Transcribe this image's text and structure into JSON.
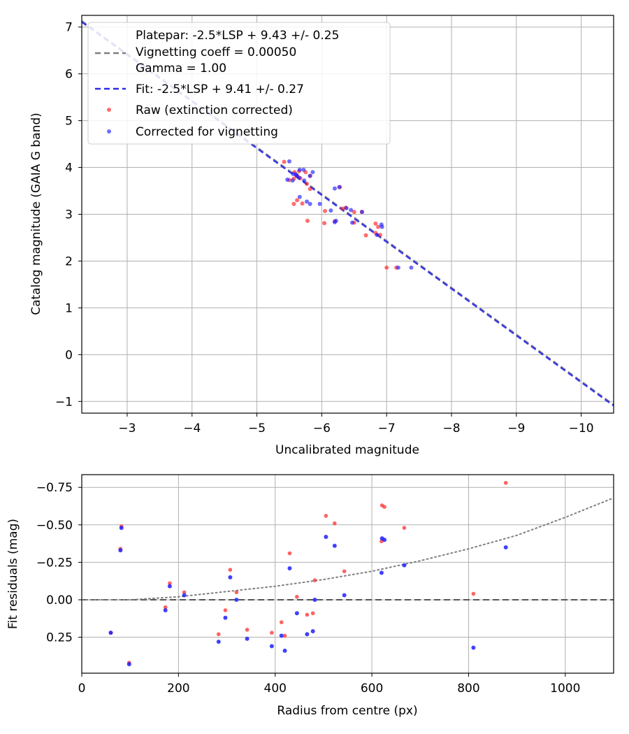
{
  "chart_data": [
    {
      "type": "scatter",
      "name": "calibration",
      "xlabel": "Uncalibrated magnitude",
      "ylabel": "Catalog magnitude (GAIA G band)",
      "xlim": [
        -2.3,
        -10.5
      ],
      "ylim": [
        7.25,
        -1.25
      ],
      "xticks": [
        -3,
        -4,
        -5,
        -6,
        -7,
        -8,
        -9,
        -10
      ],
      "xtick_labels": [
        "−3",
        "−4",
        "−5",
        "−6",
        "−7",
        "−8",
        "−9",
        "−10"
      ],
      "yticks": [
        -1,
        0,
        1,
        2,
        3,
        4,
        5,
        6,
        7
      ],
      "ytick_labels": [
        "−1",
        "0",
        "1",
        "2",
        "3",
        "4",
        "5",
        "6",
        "7"
      ],
      "grid": true,
      "legend": {
        "position": "top-left",
        "entries": [
          {
            "text": "Platepar: -2.5*LSP + 9.43 +/- 0.25",
            "marker": "none"
          },
          {
            "text": "Vignetting coeff = 0.00050",
            "marker": "dashed-gray"
          },
          {
            "text": "Gamma = 1.00",
            "marker": "none"
          },
          {
            "text": "Fit: -2.5*LSP + 9.41 +/- 0.27",
            "marker": "dashed-blue"
          },
          {
            "text": "Raw (extinction corrected)",
            "marker": "red-dot"
          },
          {
            "text": "Corrected for vignetting",
            "marker": "blue-dot"
          }
        ]
      },
      "lines": [
        {
          "name": "platepar",
          "slope": -2.5,
          "intercept": 9.43,
          "color": "#7f7f7f",
          "style": "dashed"
        },
        {
          "name": "fit",
          "slope": -2.5,
          "intercept": 9.41,
          "color": "#2a2ae6",
          "style": "dashed"
        }
      ],
      "series": [
        {
          "name": "Raw (extinction corrected)",
          "color": "#ff2020",
          "points": [
            [
              -7.0,
              1.86
            ],
            [
              -7.15,
              1.86
            ],
            [
              -6.9,
              2.56
            ],
            [
              -6.83,
              2.6
            ],
            [
              -6.68,
              2.55
            ],
            [
              -6.87,
              2.73
            ],
            [
              -6.83,
              2.8
            ],
            [
              -6.5,
              2.82
            ],
            [
              -6.5,
              3.05
            ],
            [
              -6.04,
              2.81
            ],
            [
              -6.05,
              3.07
            ],
            [
              -6.2,
              2.85
            ],
            [
              -6.32,
              3.12
            ],
            [
              -6.37,
              3.14
            ],
            [
              -6.28,
              3.58
            ],
            [
              -6.62,
              3.05
            ],
            [
              -5.78,
              2.86
            ],
            [
              -5.7,
              3.23
            ],
            [
              -5.57,
              3.22
            ],
            [
              -5.62,
              3.3
            ],
            [
              -5.77,
              3.65
            ],
            [
              -5.82,
              3.54
            ],
            [
              -5.67,
              3.77
            ],
            [
              -5.5,
              3.73
            ],
            [
              -5.57,
              3.76
            ],
            [
              -5.62,
              3.82
            ],
            [
              -5.75,
              3.9
            ],
            [
              -5.58,
              3.9
            ],
            [
              -5.42,
              4.12
            ],
            [
              -5.6,
              3.85
            ],
            [
              -5.82,
              3.82
            ],
            [
              -5.65,
              3.92
            ]
          ]
        },
        {
          "name": "Corrected for vignetting",
          "color": "#2020ff",
          "points": [
            [
              -7.38,
              1.86
            ],
            [
              -7.18,
              1.86
            ],
            [
              -6.93,
              2.73
            ],
            [
              -6.92,
              2.78
            ],
            [
              -6.85,
              2.56
            ],
            [
              -6.47,
              2.82
            ],
            [
              -6.45,
              3.09
            ],
            [
              -6.2,
              2.83
            ],
            [
              -6.22,
              2.86
            ],
            [
              -6.62,
              3.05
            ],
            [
              -6.14,
              3.08
            ],
            [
              -6.38,
              3.13
            ],
            [
              -5.97,
              3.22
            ],
            [
              -5.82,
              3.22
            ],
            [
              -5.77,
              3.27
            ],
            [
              -6.2,
              3.55
            ],
            [
              -6.27,
              3.58
            ],
            [
              -5.66,
              3.37
            ],
            [
              -5.73,
              3.72
            ],
            [
              -5.82,
              3.82
            ],
            [
              -5.86,
              3.9
            ],
            [
              -5.62,
              3.82
            ],
            [
              -5.55,
              3.72
            ],
            [
              -5.5,
              4.13
            ],
            [
              -5.72,
              3.95
            ],
            [
              -5.6,
              3.85
            ],
            [
              -5.65,
              3.78
            ],
            [
              -5.56,
              3.86
            ],
            [
              -5.66,
              3.95
            ],
            [
              -5.47,
              3.74
            ]
          ]
        }
      ]
    },
    {
      "type": "scatter",
      "name": "residuals",
      "xlabel": "Radius from centre (px)",
      "ylabel": "Fit residuals (mag)",
      "xlim": [
        0,
        1100
      ],
      "ylim": [
        -0.835,
        0.49
      ],
      "xticks": [
        0,
        200,
        400,
        600,
        800,
        1000
      ],
      "xtick_labels": [
        "0",
        "200",
        "400",
        "600",
        "800",
        "1000"
      ],
      "yticks": [
        0.25,
        0.0,
        -0.25,
        -0.5,
        -0.75
      ],
      "ytick_labels": [
        "0.25",
        "0.00",
        "−0.25",
        "−0.50",
        "−0.75"
      ],
      "grid": true,
      "zero_line": {
        "y": 0.0,
        "color": "#555555",
        "style": "dashed"
      },
      "vignetting_curve": {
        "color": "#7f7f7f",
        "style": "dotted",
        "x": [
          0,
          100,
          200,
          300,
          400,
          500,
          600,
          700,
          800,
          900,
          1000,
          1100
        ],
        "y": [
          0.0,
          0.0,
          -0.02,
          -0.055,
          -0.09,
          -0.135,
          -0.19,
          -0.26,
          -0.34,
          -0.43,
          -0.55,
          -0.68
        ]
      },
      "series": [
        {
          "name": "Raw",
          "color": "#ff2020",
          "points": [
            [
              60,
              0.22
            ],
            [
              98,
              0.42
            ],
            [
              80,
              -0.34
            ],
            [
              82,
              -0.49
            ],
            [
              173,
              0.05
            ],
            [
              182,
              -0.11
            ],
            [
              212,
              -0.05
            ],
            [
              283,
              0.23
            ],
            [
              297,
              0.07
            ],
            [
              307,
              -0.2
            ],
            [
              320,
              -0.05
            ],
            [
              342,
              0.2
            ],
            [
              393,
              0.22
            ],
            [
              413,
              0.15
            ],
            [
              420,
              0.24
            ],
            [
              430,
              -0.31
            ],
            [
              445,
              -0.02
            ],
            [
              466,
              0.1
            ],
            [
              478,
              0.09
            ],
            [
              482,
              -0.13
            ],
            [
              505,
              -0.56
            ],
            [
              523,
              -0.51
            ],
            [
              543,
              -0.19
            ],
            [
              620,
              -0.39
            ],
            [
              621,
              -0.63
            ],
            [
              626,
              -0.62
            ],
            [
              667,
              -0.48
            ],
            [
              810,
              -0.04
            ],
            [
              877,
              -0.78
            ]
          ]
        },
        {
          "name": "Corrected",
          "color": "#2020ff",
          "points": [
            [
              60,
              0.22
            ],
            [
              98,
              0.43
            ],
            [
              80,
              -0.33
            ],
            [
              82,
              -0.48
            ],
            [
              173,
              0.07
            ],
            [
              182,
              -0.09
            ],
            [
              212,
              -0.03
            ],
            [
              283,
              0.28
            ],
            [
              297,
              0.12
            ],
            [
              307,
              -0.15
            ],
            [
              320,
              0.0
            ],
            [
              342,
              0.26
            ],
            [
              393,
              0.31
            ],
            [
              413,
              0.24
            ],
            [
              420,
              0.34
            ],
            [
              430,
              -0.21
            ],
            [
              445,
              0.09
            ],
            [
              466,
              0.23
            ],
            [
              478,
              0.21
            ],
            [
              482,
              0.0
            ],
            [
              505,
              -0.42
            ],
            [
              523,
              -0.36
            ],
            [
              543,
              -0.03
            ],
            [
              620,
              -0.18
            ],
            [
              621,
              -0.41
            ],
            [
              626,
              -0.4
            ],
            [
              667,
              -0.23
            ],
            [
              810,
              0.32
            ],
            [
              877,
              -0.35
            ]
          ]
        }
      ]
    }
  ]
}
